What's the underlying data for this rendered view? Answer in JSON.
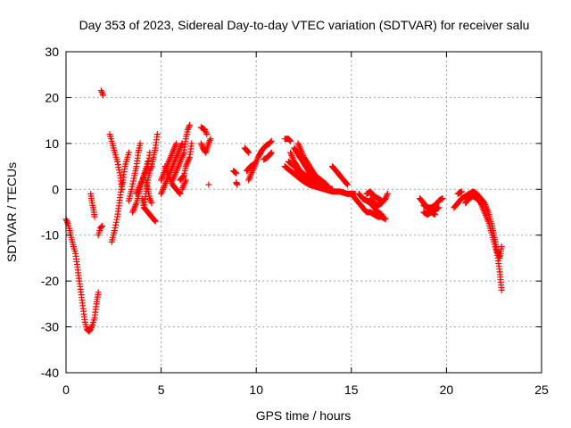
{
  "chart_data": {
    "type": "scatter",
    "title": "Day 353 of 2023, Sidereal Day-to-day VTEC variation (SDTVAR) for receiver salu",
    "xlabel": "GPS time / hours",
    "ylabel": "SDTVAR / TECUs",
    "xlim": [
      0,
      25
    ],
    "ylim": [
      -40,
      30
    ],
    "xticks": [
      0,
      5,
      10,
      15,
      20,
      25
    ],
    "yticks": [
      -40,
      -30,
      -20,
      -10,
      0,
      10,
      20,
      30
    ],
    "xtick_labels": [
      "0",
      "5",
      "10",
      "15",
      "20",
      "25"
    ],
    "ytick_labels": [
      "-40",
      "-30",
      "-20",
      "-10",
      "0",
      "10",
      "20",
      "30"
    ],
    "grid": true,
    "marker": "+",
    "color": "#ff0000",
    "series": [
      {
        "name": "SDTVAR",
        "segments": [
          [
            [
              0.0,
              -6.5
            ],
            [
              0.1,
              -7.5
            ],
            [
              0.2,
              -9
            ],
            [
              0.3,
              -11
            ],
            [
              0.4,
              -12.5
            ],
            [
              0.5,
              -14
            ],
            [
              0.6,
              -17
            ],
            [
              0.7,
              -20
            ],
            [
              0.8,
              -23
            ],
            [
              0.9,
              -26
            ],
            [
              1.0,
              -29
            ],
            [
              1.1,
              -30.5
            ],
            [
              1.2,
              -31
            ],
            [
              1.3,
              -30.5
            ],
            [
              1.4,
              -29.5
            ],
            [
              1.5,
              -28
            ],
            [
              1.6,
              -25
            ],
            [
              1.7,
              -22.5
            ]
          ],
          [
            [
              1.3,
              -1
            ],
            [
              1.35,
              -2.5
            ],
            [
              1.45,
              -4.5
            ],
            [
              1.5,
              -6
            ]
          ],
          [
            [
              1.7,
              -10
            ],
            [
              1.8,
              -8.5
            ],
            [
              1.9,
              -8
            ]
          ],
          [
            [
              1.85,
              21.5
            ],
            [
              1.95,
              20.5
            ]
          ],
          [
            [
              2.3,
              12
            ],
            [
              2.5,
              9
            ],
            [
              2.7,
              6
            ],
            [
              2.85,
              3
            ],
            [
              2.95,
              0
            ]
          ],
          [
            [
              2.4,
              -11.5
            ],
            [
              2.55,
              -9
            ],
            [
              2.7,
              -6
            ],
            [
              2.8,
              -3
            ],
            [
              2.9,
              0
            ],
            [
              3.0,
              2
            ],
            [
              3.1,
              5
            ],
            [
              3.3,
              8
            ]
          ],
          [
            [
              3.3,
              -2.5
            ],
            [
              3.45,
              0
            ],
            [
              3.6,
              3
            ],
            [
              3.7,
              5
            ],
            [
              3.8,
              8
            ],
            [
              3.9,
              10
            ]
          ],
          [
            [
              3.5,
              -5
            ],
            [
              3.7,
              -3
            ],
            [
              3.9,
              0
            ],
            [
              4.1,
              3
            ],
            [
              4.3,
              6
            ]
          ],
          [
            [
              3.7,
              -1
            ],
            [
              3.9,
              1
            ],
            [
              4.1,
              3
            ],
            [
              4.3,
              5
            ],
            [
              4.4,
              8
            ]
          ],
          [
            [
              4.0,
              -2
            ],
            [
              4.1,
              -4
            ],
            [
              4.2,
              -1
            ],
            [
              4.3,
              2
            ],
            [
              4.4,
              4
            ],
            [
              4.5,
              5
            ],
            [
              4.6,
              7
            ],
            [
              4.7,
              9
            ],
            [
              4.8,
              12
            ]
          ],
          [
            [
              4.1,
              -4
            ],
            [
              4.3,
              -5
            ],
            [
              4.5,
              -6
            ],
            [
              4.7,
              -7
            ]
          ],
          [
            [
              4.2,
              2
            ],
            [
              4.3,
              0
            ],
            [
              4.4,
              -2
            ],
            [
              4.5,
              -3
            ]
          ],
          [
            [
              5.0,
              -1
            ],
            [
              5.2,
              1
            ],
            [
              5.4,
              3
            ],
            [
              5.6,
              5
            ],
            [
              5.8,
              7
            ],
            [
              6.0,
              9
            ],
            [
              6.1,
              10
            ]
          ],
          [
            [
              5.0,
              2
            ],
            [
              5.2,
              4
            ],
            [
              5.4,
              6
            ],
            [
              5.6,
              8
            ],
            [
              5.8,
              10
            ]
          ],
          [
            [
              5.2,
              5
            ],
            [
              5.4,
              3
            ],
            [
              5.6,
              1
            ],
            [
              5.8,
              0
            ],
            [
              6.0,
              -1
            ]
          ],
          [
            [
              5.6,
              2
            ],
            [
              5.8,
              4
            ],
            [
              6.0,
              6
            ],
            [
              6.2,
              8
            ],
            [
              6.3,
              11
            ],
            [
              6.4,
              13
            ],
            [
              6.5,
              14
            ]
          ],
          [
            [
              6.0,
              2
            ],
            [
              6.2,
              3
            ],
            [
              6.3,
              5
            ],
            [
              6.5,
              7
            ],
            [
              6.6,
              10
            ]
          ],
          [
            [
              6.1,
              0
            ],
            [
              6.2,
              1
            ],
            [
              6.3,
              2
            ]
          ],
          [
            [
              7.1,
              13.5
            ],
            [
              7.3,
              13
            ],
            [
              7.4,
              12
            ]
          ],
          [
            [
              7.1,
              10
            ],
            [
              7.2,
              9
            ],
            [
              7.35,
              8
            ],
            [
              7.5,
              10
            ],
            [
              7.6,
              11
            ]
          ],
          [
            [
              7.5,
              1
            ]
          ],
          [
            [
              8.8,
              4
            ],
            [
              8.95,
              3.5
            ]
          ],
          [
            [
              8.95,
              1.5
            ],
            [
              9.0,
              1
            ]
          ],
          [
            [
              9.4,
              9
            ],
            [
              9.6,
              8
            ]
          ],
          [
            [
              9.5,
              4
            ],
            [
              9.7,
              5
            ],
            [
              9.9,
              5.5
            ]
          ],
          [
            [
              9.6,
              2
            ],
            [
              9.7,
              3
            ],
            [
              9.9,
              5
            ],
            [
              10.1,
              7
            ],
            [
              10.3,
              8.5
            ],
            [
              10.5,
              9.5
            ],
            [
              10.7,
              10
            ],
            [
              10.8,
              10.5
            ]
          ],
          [
            [
              10.4,
              6.5
            ],
            [
              10.6,
              7
            ],
            [
              10.8,
              8
            ]
          ],
          [
            [
              11.5,
              11
            ],
            [
              11.7,
              11
            ],
            [
              11.8,
              10.5
            ]
          ],
          [
            [
              11.5,
              5
            ],
            [
              11.8,
              4
            ],
            [
              12.1,
              3
            ],
            [
              12.4,
              2
            ],
            [
              12.8,
              1
            ],
            [
              13.2,
              0.5
            ],
            [
              13.6,
              0
            ],
            [
              14.0,
              -0.5
            ],
            [
              14.4,
              -0.5
            ],
            [
              14.8,
              -1
            ],
            [
              15.2,
              -1
            ]
          ],
          [
            [
              11.7,
              6
            ],
            [
              12.0,
              5
            ],
            [
              12.3,
              3.5
            ],
            [
              12.6,
              2.5
            ],
            [
              12.9,
              1.5
            ],
            [
              13.2,
              1
            ],
            [
              13.6,
              0.5
            ],
            [
              14.0,
              0
            ]
          ],
          [
            [
              11.8,
              8
            ],
            [
              12.0,
              6
            ],
            [
              12.3,
              4
            ],
            [
              12.6,
              3
            ],
            [
              12.9,
              2
            ],
            [
              13.2,
              1.5
            ]
          ],
          [
            [
              12.0,
              9
            ],
            [
              12.3,
              7
            ],
            [
              12.6,
              5
            ],
            [
              12.9,
              3
            ],
            [
              13.2,
              2
            ],
            [
              13.5,
              1
            ],
            [
              13.8,
              0.5
            ]
          ],
          [
            [
              12.2,
              10
            ],
            [
              12.5,
              7
            ],
            [
              12.8,
              5
            ],
            [
              13.1,
              3
            ],
            [
              13.4,
              2
            ],
            [
              13.7,
              1
            ]
          ],
          [
            [
              14.0,
              5
            ],
            [
              14.2,
              4
            ],
            [
              14.4,
              3
            ],
            [
              14.6,
              2
            ],
            [
              14.8,
              1
            ]
          ],
          [
            [
              15.0,
              -1
            ],
            [
              15.2,
              -2
            ],
            [
              15.4,
              -3
            ],
            [
              15.6,
              -4
            ],
            [
              15.8,
              -5
            ],
            [
              16.0,
              -5
            ],
            [
              16.2,
              -5.5
            ],
            [
              16.4,
              -6
            ],
            [
              16.6,
              -6
            ],
            [
              16.8,
              -6.5
            ]
          ],
          [
            [
              15.4,
              -1
            ],
            [
              15.6,
              -2
            ],
            [
              15.8,
              -2.5
            ],
            [
              16.0,
              -3
            ],
            [
              16.2,
              -4
            ],
            [
              16.4,
              -5
            ],
            [
              16.6,
              -5.5
            ]
          ],
          [
            [
              16.0,
              -2
            ],
            [
              16.2,
              -3
            ],
            [
              16.4,
              -3.5
            ],
            [
              16.6,
              -3
            ],
            [
              16.8,
              -2
            ],
            [
              16.9,
              -1
            ]
          ],
          [
            [
              15.8,
              -1
            ],
            [
              16.0,
              -0.5
            ],
            [
              16.2,
              -1.5
            ],
            [
              16.4,
              -2
            ],
            [
              16.6,
              -2.5
            ]
          ],
          [
            [
              18.6,
              -2
            ],
            [
              18.8,
              -3
            ],
            [
              19.0,
              -4
            ],
            [
              19.2,
              -5
            ],
            [
              19.4,
              -5.5
            ]
          ],
          [
            [
              18.8,
              -5
            ],
            [
              19.0,
              -5.5
            ],
            [
              19.2,
              -5
            ],
            [
              19.4,
              -4.5
            ],
            [
              19.6,
              -4
            ]
          ],
          [
            [
              18.8,
              -3.5
            ],
            [
              19.0,
              -4
            ],
            [
              19.2,
              -4
            ],
            [
              19.4,
              -3.5
            ],
            [
              19.6,
              -2.5
            ],
            [
              19.8,
              -2
            ]
          ],
          [
            [
              20.4,
              -4
            ],
            [
              20.6,
              -3
            ],
            [
              20.8,
              -2
            ],
            [
              21.0,
              -1.5
            ],
            [
              21.2,
              -1
            ],
            [
              21.4,
              -0.5
            ],
            [
              21.6,
              -1
            ],
            [
              21.8,
              -2
            ],
            [
              22.0,
              -3
            ],
            [
              22.2,
              -5
            ],
            [
              22.4,
              -8
            ],
            [
              22.5,
              -10
            ],
            [
              22.6,
              -12
            ],
            [
              22.7,
              -15
            ],
            [
              22.8,
              -18
            ],
            [
              22.9,
              -22
            ]
          ],
          [
            [
              20.6,
              -1
            ],
            [
              20.8,
              -0.5
            ]
          ],
          [
            [
              21.0,
              -3
            ],
            [
              21.2,
              -2
            ],
            [
              21.4,
              -1.5
            ],
            [
              21.6,
              -2
            ],
            [
              21.8,
              -3
            ],
            [
              22.0,
              -5
            ],
            [
              22.2,
              -7
            ],
            [
              22.4,
              -10
            ],
            [
              22.6,
              -13
            ],
            [
              22.8,
              -15
            ],
            [
              22.9,
              -12.5
            ]
          ]
        ]
      }
    ]
  }
}
